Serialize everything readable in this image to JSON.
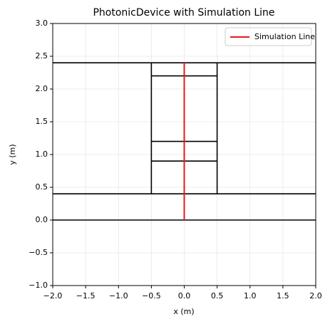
{
  "chart_data": {
    "type": "line",
    "title": "PhotonicDevice with Simulation Line",
    "x_label": "x (m)",
    "y_label": "y (m)",
    "xlim": [
      -2,
      2
    ],
    "ylim": [
      -1,
      3
    ],
    "xticks": [
      {
        "value": -2,
        "label": "−2.0"
      },
      {
        "value": -1.5,
        "label": "−1.5"
      },
      {
        "value": -1,
        "label": "−1.0"
      },
      {
        "value": -0.5,
        "label": "−0.5"
      },
      {
        "value": 0,
        "label": "0.0"
      },
      0.5,
      {
        "value": 1,
        "label": "1.0"
      },
      1.5,
      {
        "value": 2,
        "label": "2.0"
      }
    ],
    "yticks": [
      {
        "value": -1,
        "label": "−1.0"
      },
      {
        "value": -0.5,
        "label": "−0.5"
      },
      {
        "value": 0,
        "label": "0.0"
      },
      0.5,
      {
        "value": 1,
        "label": "1.0"
      },
      1.5,
      {
        "value": 2,
        "label": "2.0"
      },
      2.5,
      {
        "value": 3,
        "label": "3.0"
      }
    ],
    "grid": true,
    "legend": "upper right",
    "series": [
      {
        "color": "#000000",
        "x": [
          -2,
          2
        ],
        "values": [
          2.4,
          2.4
        ]
      },
      {
        "color": "#000000",
        "x": [
          -2,
          2
        ],
        "values": [
          0.4,
          0.4
        ]
      },
      {
        "color": "#000000",
        "x": [
          -2,
          2
        ],
        "values": [
          0,
          0
        ]
      },
      {
        "color": "#000000",
        "x": [
          -0.5,
          -0.5
        ],
        "values": [
          0.4,
          2.4
        ]
      },
      {
        "color": "#000000",
        "x": [
          0.5,
          0.5
        ],
        "values": [
          0.4,
          2.4
        ]
      },
      {
        "color": "#000000",
        "x": [
          -0.5,
          0.5
        ],
        "values": [
          2.2,
          2.2
        ]
      },
      {
        "color": "#000000",
        "x": [
          -0.5,
          0.5
        ],
        "values": [
          1.2,
          1.2
        ]
      },
      {
        "color": "#000000",
        "x": [
          -0.5,
          0.5
        ],
        "values": [
          0.9,
          0.9
        ]
      },
      {
        "name": "Simulation Line",
        "color": "#e41a1c",
        "x": [
          0,
          0
        ],
        "values": [
          0,
          2.4
        ]
      }
    ]
  }
}
